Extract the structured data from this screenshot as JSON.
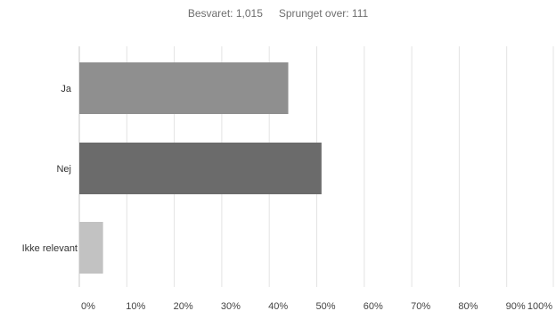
{
  "stats": {
    "answered_label": "Besvaret: 1,015",
    "skipped_label": "Sprunget over: 111"
  },
  "colors": {
    "grid": "#e3e3e3",
    "axis": "#c8c8c8",
    "text": "#333333",
    "tick_text": "#444444"
  },
  "chart_data": {
    "type": "bar",
    "orientation": "horizontal",
    "categories": [
      "Ja",
      "Nej",
      "Ikke relevant"
    ],
    "values": [
      44,
      51,
      5
    ],
    "bar_colors": [
      "#8f8f8f",
      "#6b6b6b",
      "#c2c2c2"
    ],
    "xlim": [
      0,
      100
    ],
    "x_ticks": [
      0,
      10,
      20,
      30,
      40,
      50,
      60,
      70,
      80,
      90,
      100
    ],
    "x_tick_labels": [
      "0%",
      "10%",
      "20%",
      "30%",
      "40%",
      "50%",
      "60%",
      "70%",
      "80%",
      "90%",
      "100%"
    ],
    "grid": true,
    "legend": "none",
    "title": "",
    "xlabel": "",
    "ylabel": ""
  }
}
